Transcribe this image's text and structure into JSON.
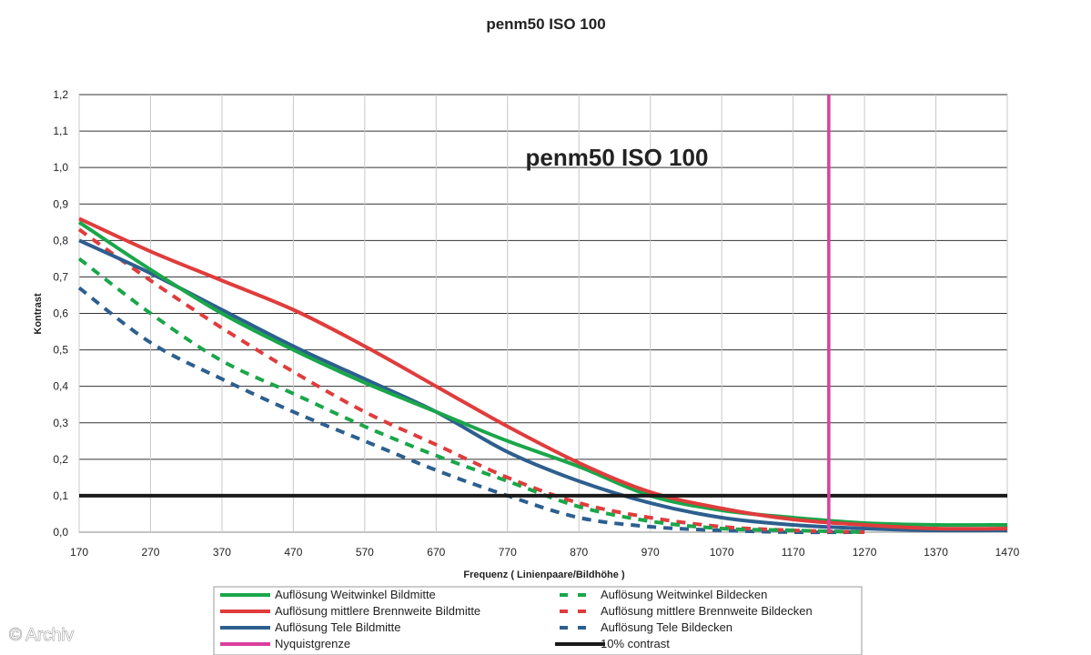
{
  "chart_data": {
    "type": "line",
    "title": "penm50 ISO 100",
    "inner_title": "penm50 ISO 100",
    "xlabel": "Frequenz ( Linienpaare/Bildhöhe )",
    "ylabel": "Kontrast",
    "xlim": [
      170,
      1470
    ],
    "ylim": [
      0,
      1.2
    ],
    "x_ticks": [
      "170",
      "270",
      "370",
      "470",
      "570",
      "670",
      "770",
      "870",
      "970",
      "1070",
      "1170",
      "1270",
      "1370",
      "1470"
    ],
    "y_ticks": [
      "0,0",
      "0,1",
      "0,2",
      "0,3",
      "0,4",
      "0,5",
      "0,6",
      "0,7",
      "0,8",
      "0,9",
      "1,0",
      "1,1",
      "1,2"
    ],
    "grid": "horizontal",
    "legend_position": "bottom",
    "series": [
      {
        "name": "Auflösung Weitwinkel Bildmitte",
        "color": "#1aa64a",
        "style": "solid",
        "x": [
          170,
          270,
          370,
          470,
          570,
          670,
          770,
          870,
          970,
          1070,
          1170,
          1270,
          1370,
          1470
        ],
        "y": [
          0.85,
          0.72,
          0.6,
          0.5,
          0.41,
          0.33,
          0.25,
          0.18,
          0.1,
          0.06,
          0.04,
          0.025,
          0.02,
          0.02
        ]
      },
      {
        "name": "Auflösung mittlere Brennweite Bildmitte",
        "color": "#e03c3c",
        "style": "solid",
        "x": [
          170,
          270,
          370,
          470,
          570,
          670,
          770,
          870,
          970,
          1070,
          1170,
          1270,
          1370,
          1470
        ],
        "y": [
          0.86,
          0.77,
          0.69,
          0.61,
          0.51,
          0.4,
          0.29,
          0.19,
          0.11,
          0.065,
          0.035,
          0.02,
          0.01,
          0.01
        ]
      },
      {
        "name": "Auflösung Tele Bildmitte",
        "color": "#2d5f8f",
        "style": "solid",
        "x": [
          170,
          270,
          370,
          470,
          570,
          670,
          770,
          870,
          970,
          1070,
          1170,
          1270,
          1370,
          1470
        ],
        "y": [
          0.8,
          0.71,
          0.61,
          0.51,
          0.42,
          0.33,
          0.22,
          0.14,
          0.08,
          0.04,
          0.02,
          0.01,
          0.005,
          0.005
        ]
      },
      {
        "name": "Nyquistgrenze",
        "color": "#d9409e",
        "style": "vline",
        "x": [
          1220,
          1220
        ],
        "y": [
          0,
          1.2
        ]
      },
      {
        "name": "Auflösung Weitwinkel Bildecken",
        "color": "#1aa64a",
        "style": "dashed",
        "x": [
          170,
          270,
          370,
          470,
          570,
          670,
          770,
          870,
          970,
          1070,
          1170,
          1270
        ],
        "y": [
          0.75,
          0.6,
          0.47,
          0.38,
          0.29,
          0.21,
          0.14,
          0.07,
          0.03,
          0.01,
          0.005,
          0.0
        ]
      },
      {
        "name": "Auflösung mittlere Brennweite Bildecken",
        "color": "#e03c3c",
        "style": "dashed",
        "x": [
          170,
          270,
          370,
          470,
          570,
          670,
          770,
          870,
          970,
          1070,
          1170,
          1270
        ],
        "y": [
          0.83,
          0.69,
          0.56,
          0.44,
          0.33,
          0.24,
          0.15,
          0.08,
          0.04,
          0.015,
          0.005,
          0.0
        ]
      },
      {
        "name": "Auflösung Tele Bildecken",
        "color": "#2d5f8f",
        "style": "dashed",
        "x": [
          170,
          270,
          370,
          470,
          570,
          670,
          770,
          870,
          970,
          1070,
          1170,
          1270
        ],
        "y": [
          0.67,
          0.52,
          0.42,
          0.33,
          0.25,
          0.17,
          0.1,
          0.04,
          0.015,
          0.005,
          0.0,
          0.0
        ]
      },
      {
        "name": "10% contrast",
        "color": "#1a1a1a",
        "style": "hline",
        "x": [
          170,
          1470
        ],
        "y": [
          0.1,
          0.1
        ]
      }
    ]
  },
  "watermark": "© Archiv"
}
